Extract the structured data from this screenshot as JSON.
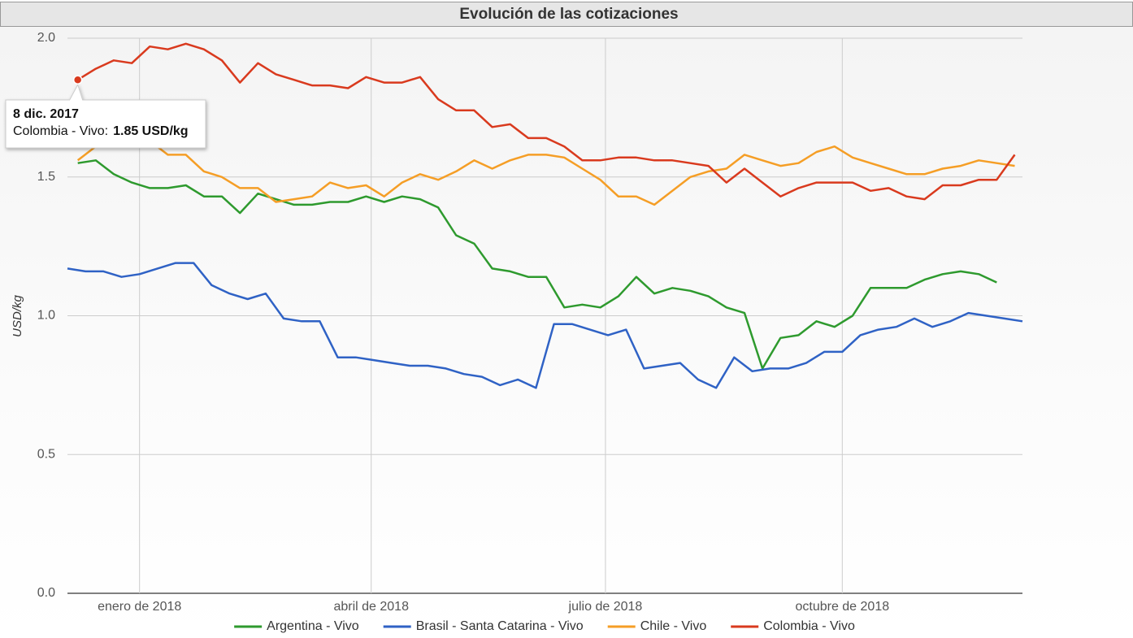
{
  "chart_data": {
    "type": "line",
    "title": "Evolución de las cotizaciones",
    "y_label": "USD/kg",
    "x": [
      "2017-12-08",
      "2017-12-15",
      "2017-12-22",
      "2017-12-29",
      "2018-01-05",
      "2018-01-12",
      "2018-01-19",
      "2018-01-26",
      "2018-02-02",
      "2018-02-09",
      "2018-02-16",
      "2018-02-23",
      "2018-03-02",
      "2018-03-09",
      "2018-03-16",
      "2018-03-23",
      "2018-03-30",
      "2018-04-06",
      "2018-04-13",
      "2018-04-20",
      "2018-04-27",
      "2018-05-04",
      "2018-05-11",
      "2018-05-18",
      "2018-05-25",
      "2018-06-01",
      "2018-06-08",
      "2018-06-15",
      "2018-06-22",
      "2018-06-29",
      "2018-07-06",
      "2018-07-13",
      "2018-07-20",
      "2018-07-27",
      "2018-08-03",
      "2018-08-10",
      "2018-08-17",
      "2018-08-24",
      "2018-08-31",
      "2018-09-07",
      "2018-09-14",
      "2018-09-21",
      "2018-09-28",
      "2018-10-05",
      "2018-10-12",
      "2018-10-19",
      "2018-10-26",
      "2018-11-02",
      "2018-11-09",
      "2018-11-16",
      "2018-11-23",
      "2018-11-30",
      "2018-12-07"
    ],
    "series": [
      {
        "name": "Argentina - Vivo",
        "color": "#2e9a2e",
        "values": [
          1.55,
          1.56,
          1.51,
          1.48,
          1.46,
          1.46,
          1.47,
          1.43,
          1.43,
          1.37,
          1.44,
          1.42,
          1.4,
          1.4,
          1.41,
          1.41,
          1.43,
          1.41,
          1.43,
          1.42,
          1.39,
          1.29,
          1.26,
          1.17,
          1.16,
          1.14,
          1.14,
          1.03,
          1.04,
          1.03,
          1.07,
          1.14,
          1.08,
          1.1,
          1.09,
          1.07,
          1.03,
          1.01,
          0.81,
          0.92,
          0.93,
          0.98,
          0.96,
          1.0,
          1.1,
          1.1,
          1.1,
          1.13,
          1.15,
          1.16,
          1.15,
          1.12,
          null
        ]
      },
      {
        "name": "Brasil - Santa Catarina - Vivo",
        "color": "#2f62c5",
        "x": [
          "2017-12-04",
          "2017-12-11",
          "2017-12-18",
          "2017-12-25",
          "2018-01-01",
          "2018-01-08",
          "2018-01-15",
          "2018-01-22",
          "2018-01-29",
          "2018-02-05",
          "2018-02-12",
          "2018-02-19",
          "2018-02-26",
          "2018-03-05",
          "2018-03-12",
          "2018-03-19",
          "2018-03-26",
          "2018-04-02",
          "2018-04-09",
          "2018-04-16",
          "2018-04-23",
          "2018-04-30",
          "2018-05-07",
          "2018-05-14",
          "2018-05-21",
          "2018-05-28",
          "2018-06-04",
          "2018-06-11",
          "2018-06-18",
          "2018-06-25",
          "2018-07-02",
          "2018-07-09",
          "2018-07-16",
          "2018-07-23",
          "2018-07-30",
          "2018-08-06",
          "2018-08-13",
          "2018-08-20",
          "2018-08-27",
          "2018-09-03",
          "2018-09-10",
          "2018-09-17",
          "2018-09-24",
          "2018-10-01",
          "2018-10-08",
          "2018-10-15",
          "2018-10-22",
          "2018-10-29",
          "2018-11-05",
          "2018-11-12",
          "2018-11-19",
          "2018-11-26",
          "2018-12-03",
          "2018-12-10"
        ],
        "values": [
          1.17,
          1.16,
          1.16,
          1.14,
          1.15,
          1.17,
          1.19,
          1.19,
          1.11,
          1.08,
          1.06,
          1.08,
          0.99,
          0.98,
          0.98,
          0.85,
          0.85,
          0.84,
          0.83,
          0.82,
          0.82,
          0.81,
          0.79,
          0.78,
          0.75,
          0.77,
          0.74,
          0.97,
          0.97,
          0.95,
          0.93,
          0.95,
          0.81,
          0.82,
          0.83,
          0.77,
          0.74,
          0.85,
          0.8,
          0.81,
          0.81,
          0.83,
          0.87,
          0.87,
          0.93,
          0.95,
          0.96,
          0.99,
          0.96,
          0.98,
          1.01,
          1.0,
          0.99,
          0.98
        ]
      },
      {
        "name": "Chile - Vivo",
        "color": "#f59e26",
        "values": [
          1.56,
          1.61,
          1.64,
          1.65,
          1.63,
          1.58,
          1.58,
          1.52,
          1.5,
          1.46,
          1.46,
          1.41,
          1.42,
          1.43,
          1.48,
          1.46,
          1.47,
          1.43,
          1.48,
          1.51,
          1.49,
          1.52,
          1.56,
          1.53,
          1.56,
          1.58,
          1.58,
          1.57,
          1.53,
          1.49,
          1.43,
          1.43,
          1.4,
          1.45,
          1.5,
          1.52,
          1.53,
          1.58,
          1.56,
          1.54,
          1.55,
          1.59,
          1.61,
          1.57,
          1.55,
          1.53,
          1.51,
          1.51,
          1.53,
          1.54,
          1.56,
          1.55,
          1.54
        ]
      },
      {
        "name": "Colombia - Vivo",
        "color": "#d93a1e",
        "values": [
          1.85,
          1.89,
          1.92,
          1.91,
          1.97,
          1.96,
          1.98,
          1.96,
          1.92,
          1.84,
          1.91,
          1.87,
          1.85,
          1.83,
          1.83,
          1.82,
          1.86,
          1.84,
          1.84,
          1.86,
          1.78,
          1.74,
          1.74,
          1.68,
          1.69,
          1.64,
          1.64,
          1.61,
          1.56,
          1.56,
          1.57,
          1.57,
          1.56,
          1.56,
          1.55,
          1.54,
          1.48,
          1.53,
          1.48,
          1.43,
          1.46,
          1.48,
          1.48,
          1.48,
          1.45,
          1.46,
          1.43,
          1.42,
          1.47,
          1.47,
          1.49,
          1.49,
          1.58
        ]
      }
    ],
    "xlim": [
      "2017-12-04",
      "2018-12-10"
    ],
    "xticks": [
      {
        "value": "2018-01-01",
        "label": "enero de 2018"
      },
      {
        "value": "2018-04-01",
        "label": "abril de 2018"
      },
      {
        "value": "2018-07-01",
        "label": "julio de 2018"
      },
      {
        "value": "2018-10-01",
        "label": "octubre de 2018"
      }
    ],
    "ylim": [
      0,
      2
    ],
    "yticks": [
      {
        "value": 0,
        "label": "0.0"
      },
      0.5,
      {
        "value": 1,
        "label": "1.0"
      },
      1.5,
      {
        "value": 2,
        "label": "2.0"
      }
    ],
    "grid": true,
    "legend": "bottom",
    "tooltip": {
      "series": 3,
      "index": 0,
      "date": "8 dic. 2017",
      "label": "Colombia - Vivo:",
      "value_label": "1.85 USD/kg"
    }
  }
}
